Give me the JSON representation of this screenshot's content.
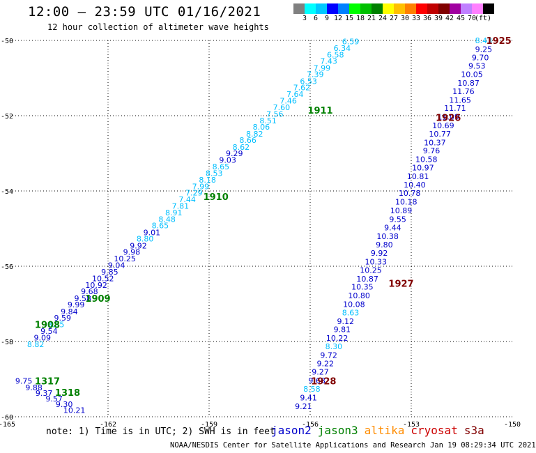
{
  "header": {
    "title": "12:00 – 23:59 UTC 01/16/2021",
    "subtitle": "12 hour collection of altimeter wave heights"
  },
  "color_scale": {
    "unit": "(ft)",
    "colors": [
      "#808080",
      "#00ffff",
      "#00c8ff",
      "#0000ff",
      "#0080ff",
      "#00ff00",
      "#00c000",
      "#008000",
      "#ffff00",
      "#ffc000",
      "#ff8000",
      "#ff0000",
      "#c00000",
      "#800000",
      "#a000a0",
      "#c080ff",
      "#ff80ff",
      "#000000"
    ],
    "labels": [
      "3",
      "6",
      "9",
      "12",
      "15",
      "18",
      "21",
      "24",
      "27",
      "30",
      "33",
      "36",
      "39",
      "42",
      "45",
      "70"
    ]
  },
  "axes": {
    "x_ticks": [
      "-165",
      "-162",
      "-159",
      "-156",
      "-153",
      "-150"
    ],
    "y_ticks": [
      "-50",
      "-52",
      "-54",
      "-56",
      "-58",
      "-60"
    ]
  },
  "footer": {
    "note": "note: 1) Time is in UTC; 2) SWH is in feet",
    "missions": [
      {
        "name": "jason2",
        "color": "#0000cc"
      },
      {
        "name": "jason3",
        "color": "#008000"
      },
      {
        "name": "altika",
        "color": "#ff8c00"
      },
      {
        "name": "cryosat",
        "color": "#cc0000"
      },
      {
        "name": "s3a",
        "color": "#800000"
      }
    ],
    "credit": "NOAA/NESDIS Center for Satellite Applications and Research   Jan 19 08:29:34 UTC 2021"
  },
  "chart_data": {
    "type": "scatter",
    "xlim": [
      -165,
      -150
    ],
    "ylim": [
      -60,
      -50
    ],
    "grid": true,
    "pass_labels": [
      {
        "text": "1925",
        "lon": -150.4,
        "lat": -50.0,
        "color": "#800000"
      },
      {
        "text": "1926",
        "lon": -151.9,
        "lat": -52.05,
        "color": "#800000"
      },
      {
        "text": "1927",
        "lon": -153.3,
        "lat": -56.45,
        "color": "#800000"
      },
      {
        "text": "1928",
        "lon": -155.6,
        "lat": -59.05,
        "color": "#800000"
      },
      {
        "text": "1911",
        "lon": -155.7,
        "lat": -51.85,
        "color": "#008000"
      },
      {
        "text": "1910",
        "lon": -158.8,
        "lat": -54.15,
        "color": "#008000"
      },
      {
        "text": "1909",
        "lon": -162.3,
        "lat": -56.85,
        "color": "#008000"
      },
      {
        "text": "1908",
        "lon": -163.8,
        "lat": -57.55,
        "color": "#008000"
      },
      {
        "text": "1317",
        "lon": -163.8,
        "lat": -59.05,
        "color": "#008000"
      },
      {
        "text": "1318",
        "lon": -163.2,
        "lat": -59.35,
        "color": "#008000"
      }
    ],
    "values": [
      {
        "v": "8.43",
        "lon": -150.85,
        "lat": -50.0,
        "color": "#00bfff"
      },
      {
        "v": "9.25",
        "lon": -150.85,
        "lat": -50.23,
        "color": "#0000cc"
      },
      {
        "v": "9.70",
        "lon": -150.95,
        "lat": -50.45,
        "color": "#0000cc"
      },
      {
        "v": "9.53",
        "lon": -151.05,
        "lat": -50.68,
        "color": "#0000cc"
      },
      {
        "v": "10.05",
        "lon": -151.2,
        "lat": -50.9,
        "color": "#0000cc"
      },
      {
        "v": "10.87",
        "lon": -151.3,
        "lat": -51.13,
        "color": "#0000cc"
      },
      {
        "v": "11.76",
        "lon": -151.45,
        "lat": -51.35,
        "color": "#0000cc"
      },
      {
        "v": "11.65",
        "lon": -151.55,
        "lat": -51.58,
        "color": "#0000cc"
      },
      {
        "v": "11.71",
        "lon": -151.7,
        "lat": -51.8,
        "color": "#0000cc"
      },
      {
        "v": "11.09",
        "lon": -151.9,
        "lat": -52.03,
        "color": "#0000cc"
      },
      {
        "v": "10.69",
        "lon": -152.05,
        "lat": -52.26,
        "color": "#0000cc"
      },
      {
        "v": "10.77",
        "lon": -152.15,
        "lat": -52.48,
        "color": "#0000cc"
      },
      {
        "v": "10.37",
        "lon": -152.3,
        "lat": -52.71,
        "color": "#0000cc"
      },
      {
        "v": "9.76",
        "lon": -152.4,
        "lat": -52.93,
        "color": "#0000cc"
      },
      {
        "v": "10.58",
        "lon": -152.55,
        "lat": -53.16,
        "color": "#0000cc"
      },
      {
        "v": "10.97",
        "lon": -152.65,
        "lat": -53.38,
        "color": "#0000cc"
      },
      {
        "v": "10.81",
        "lon": -152.8,
        "lat": -53.61,
        "color": "#0000cc"
      },
      {
        "v": "10.40",
        "lon": -152.9,
        "lat": -53.83,
        "color": "#0000cc"
      },
      {
        "v": "10.78",
        "lon": -153.05,
        "lat": -54.06,
        "color": "#0000cc"
      },
      {
        "v": "10.18",
        "lon": -153.15,
        "lat": -54.29,
        "color": "#0000cc"
      },
      {
        "v": "10.89",
        "lon": -153.3,
        "lat": -54.52,
        "color": "#0000cc"
      },
      {
        "v": "9.55",
        "lon": -153.4,
        "lat": -54.75,
        "color": "#0000cc"
      },
      {
        "v": "9.44",
        "lon": -153.55,
        "lat": -54.97,
        "color": "#0000cc"
      },
      {
        "v": "10.38",
        "lon": -153.7,
        "lat": -55.2,
        "color": "#0000cc"
      },
      {
        "v": "9.80",
        "lon": -153.8,
        "lat": -55.43,
        "color": "#0000cc"
      },
      {
        "v": "9.92",
        "lon": -153.95,
        "lat": -55.65,
        "color": "#0000cc"
      },
      {
        "v": "10.33",
        "lon": -154.05,
        "lat": -55.88,
        "color": "#0000cc"
      },
      {
        "v": "10.25",
        "lon": -154.2,
        "lat": -56.1,
        "color": "#0000cc"
      },
      {
        "v": "10.87",
        "lon": -154.3,
        "lat": -56.33,
        "color": "#0000cc"
      },
      {
        "v": "10.35",
        "lon": -154.45,
        "lat": -56.55,
        "color": "#0000cc"
      },
      {
        "v": "10.80",
        "lon": -154.55,
        "lat": -56.78,
        "color": "#0000cc"
      },
      {
        "v": "10.08",
        "lon": -154.7,
        "lat": -57.01,
        "color": "#0000cc"
      },
      {
        "v": "8.63",
        "lon": -154.8,
        "lat": -57.23,
        "color": "#00bfff"
      },
      {
        "v": "9.12",
        "lon": -154.95,
        "lat": -57.46,
        "color": "#0000cc"
      },
      {
        "v": "9.81",
        "lon": -155.05,
        "lat": -57.68,
        "color": "#0000cc"
      },
      {
        "v": "10.22",
        "lon": -155.2,
        "lat": -57.91,
        "color": "#0000cc"
      },
      {
        "v": "8.30",
        "lon": -155.3,
        "lat": -58.13,
        "color": "#00bfff"
      },
      {
        "v": "9.72",
        "lon": -155.45,
        "lat": -58.36,
        "color": "#0000cc"
      },
      {
        "v": "9.22",
        "lon": -155.55,
        "lat": -58.58,
        "color": "#0000cc"
      },
      {
        "v": "9.27",
        "lon": -155.7,
        "lat": -58.81,
        "color": "#0000cc"
      },
      {
        "v": "9.68",
        "lon": -155.8,
        "lat": -59.04,
        "color": "#0000cc"
      },
      {
        "v": "8.58",
        "lon": -155.95,
        "lat": -59.26,
        "color": "#00bfff"
      },
      {
        "v": "9.41",
        "lon": -156.05,
        "lat": -59.49,
        "color": "#0000cc"
      },
      {
        "v": "9.21",
        "lon": -156.2,
        "lat": -59.72,
        "color": "#0000cc"
      },
      {
        "v": "6.59",
        "lon": -154.8,
        "lat": -50.03,
        "color": "#00bfff"
      },
      {
        "v": "6.34",
        "lon": -155.05,
        "lat": -50.2,
        "color": "#00bfff"
      },
      {
        "v": "6.58",
        "lon": -155.25,
        "lat": -50.38,
        "color": "#00bfff"
      },
      {
        "v": "7.43",
        "lon": -155.45,
        "lat": -50.55,
        "color": "#00bfff"
      },
      {
        "v": "7.99",
        "lon": -155.65,
        "lat": -50.73,
        "color": "#00bfff"
      },
      {
        "v": "7.39",
        "lon": -155.85,
        "lat": -50.9,
        "color": "#00bfff"
      },
      {
        "v": "6.53",
        "lon": -156.05,
        "lat": -51.08,
        "color": "#00bfff"
      },
      {
        "v": "7.62",
        "lon": -156.25,
        "lat": -51.25,
        "color": "#00bfff"
      },
      {
        "v": "7.64",
        "lon": -156.45,
        "lat": -51.43,
        "color": "#00bfff"
      },
      {
        "v": "7.46",
        "lon": -156.65,
        "lat": -51.6,
        "color": "#00bfff"
      },
      {
        "v": "7.60",
        "lon": -156.85,
        "lat": -51.78,
        "color": "#00bfff"
      },
      {
        "v": "7.56",
        "lon": -157.05,
        "lat": -51.95,
        "color": "#00bfff"
      },
      {
        "v": "8.51",
        "lon": -157.25,
        "lat": -52.13,
        "color": "#00bfff"
      },
      {
        "v": "8.06",
        "lon": -157.45,
        "lat": -52.3,
        "color": "#00bfff"
      },
      {
        "v": "8.82",
        "lon": -157.65,
        "lat": -52.48,
        "color": "#00bfff"
      },
      {
        "v": "8.66",
        "lon": -157.85,
        "lat": -52.65,
        "color": "#00bfff"
      },
      {
        "v": "8.62",
        "lon": -158.05,
        "lat": -52.83,
        "color": "#00bfff"
      },
      {
        "v": "9.29",
        "lon": -158.25,
        "lat": -53.0,
        "color": "#0000cc"
      },
      {
        "v": "9.03",
        "lon": -158.45,
        "lat": -53.18,
        "color": "#0000cc"
      },
      {
        "v": "8.65",
        "lon": -158.65,
        "lat": -53.35,
        "color": "#00bfff"
      },
      {
        "v": "8.53",
        "lon": -158.85,
        "lat": -53.53,
        "color": "#00bfff"
      },
      {
        "v": "8.18",
        "lon": -159.05,
        "lat": -53.7,
        "color": "#00bfff"
      },
      {
        "v": "7.99",
        "lon": -159.25,
        "lat": -53.88,
        "color": "#00bfff"
      },
      {
        "v": "7.29",
        "lon": -159.45,
        "lat": -54.05,
        "color": "#00bfff"
      },
      {
        "v": "7.44",
        "lon": -159.65,
        "lat": -54.22,
        "color": "#00bfff"
      },
      {
        "v": "7.81",
        "lon": -159.85,
        "lat": -54.4,
        "color": "#00bfff"
      },
      {
        "v": "8.91",
        "lon": -160.05,
        "lat": -54.57,
        "color": "#00bfff"
      },
      {
        "v": "8.48",
        "lon": -160.25,
        "lat": -54.75,
        "color": "#00bfff"
      },
      {
        "v": "8.65",
        "lon": -160.45,
        "lat": -54.92,
        "color": "#00bfff"
      },
      {
        "v": "9.01",
        "lon": -160.7,
        "lat": -55.1,
        "color": "#0000cc"
      },
      {
        "v": "8.80",
        "lon": -160.9,
        "lat": -55.27,
        "color": "#00bfff"
      },
      {
        "v": "9.92",
        "lon": -161.1,
        "lat": -55.45,
        "color": "#0000cc"
      },
      {
        "v": "9.98",
        "lon": -161.3,
        "lat": -55.62,
        "color": "#0000cc"
      },
      {
        "v": "10.25",
        "lon": -161.5,
        "lat": -55.8,
        "color": "#0000cc"
      },
      {
        "v": "9.04",
        "lon": -161.75,
        "lat": -55.97,
        "color": "#0000cc"
      },
      {
        "v": "9.85",
        "lon": -161.95,
        "lat": -56.15,
        "color": "#0000cc"
      },
      {
        "v": "10.52",
        "lon": -162.15,
        "lat": -56.32,
        "color": "#0000cc"
      },
      {
        "v": "10.92",
        "lon": -162.35,
        "lat": -56.5,
        "color": "#0000cc"
      },
      {
        "v": "9.68",
        "lon": -162.55,
        "lat": -56.67,
        "color": "#0000cc"
      },
      {
        "v": "9.58",
        "lon": -162.75,
        "lat": -56.85,
        "color": "#0000cc"
      },
      {
        "v": "9.99",
        "lon": -162.95,
        "lat": -57.02,
        "color": "#0000cc"
      },
      {
        "v": "9.84",
        "lon": -163.15,
        "lat": -57.2,
        "color": "#0000cc"
      },
      {
        "v": "9.59",
        "lon": -163.35,
        "lat": -57.37,
        "color": "#0000cc"
      },
      {
        "v": "8.85",
        "lon": -163.55,
        "lat": -57.55,
        "color": "#00bfff"
      },
      {
        "v": "9.54",
        "lon": -163.75,
        "lat": -57.72,
        "color": "#0000cc"
      },
      {
        "v": "9.09",
        "lon": -163.95,
        "lat": -57.9,
        "color": "#0000cc"
      },
      {
        "v": "8.82",
        "lon": -164.15,
        "lat": -58.07,
        "color": "#00bfff"
      },
      {
        "v": "9.75",
        "lon": -164.5,
        "lat": -59.05,
        "color": "#0000cc"
      },
      {
        "v": "9.88",
        "lon": -164.2,
        "lat": -59.22,
        "color": "#0000cc"
      },
      {
        "v": "9.37",
        "lon": -163.9,
        "lat": -59.37,
        "color": "#0000cc"
      },
      {
        "v": "9.57",
        "lon": -163.6,
        "lat": -59.52,
        "color": "#0000cc"
      },
      {
        "v": "9.30",
        "lon": -163.3,
        "lat": -59.67,
        "color": "#0000cc"
      },
      {
        "v": "10.21",
        "lon": -163.0,
        "lat": -59.82,
        "color": "#0000cc"
      }
    ]
  }
}
